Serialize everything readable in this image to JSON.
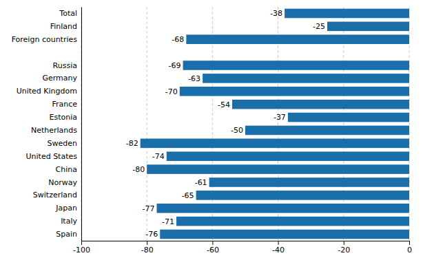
{
  "chart_data": {
    "type": "bar",
    "orientation": "horizontal",
    "categories": [
      "Spain",
      "Italy",
      "Japan",
      "Switzerland",
      "Norway",
      "China",
      "United States",
      "Sweden",
      "Netherlands",
      "Estonia",
      "France",
      "United Kingdom",
      "Germany",
      "Russia",
      null,
      "Foreign countries",
      "Finland",
      "Total"
    ],
    "values": [
      -76,
      -71,
      -77,
      -65,
      -61,
      -80,
      -74,
      -82,
      -50,
      -37,
      -54,
      -70,
      -63,
      -69,
      null,
      -68,
      -25,
      -38
    ],
    "color": "#1a6faa",
    "xlim": [
      -100,
      0
    ],
    "xticks": [
      -100,
      -80,
      -60,
      -40,
      -20,
      0
    ],
    "grid": true,
    "data_labels": true
  }
}
